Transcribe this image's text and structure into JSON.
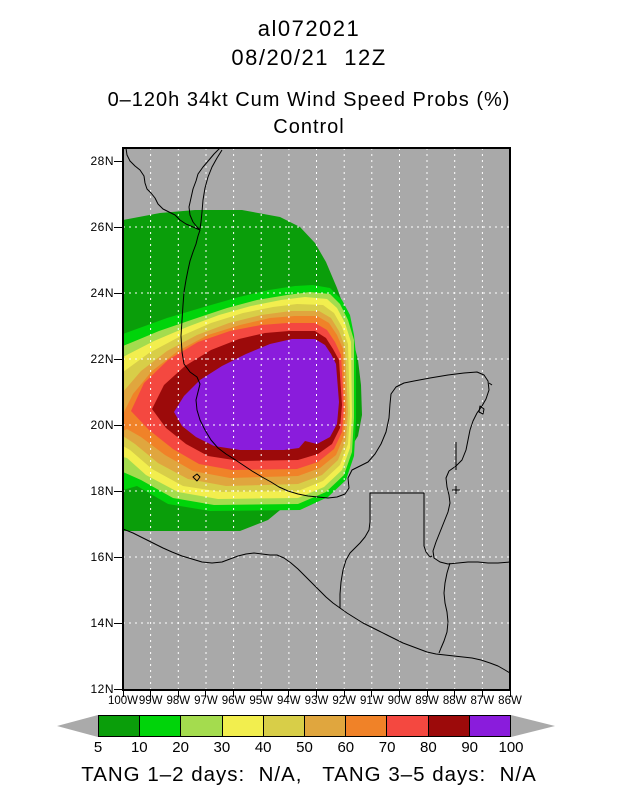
{
  "header": {
    "storm_id": "al072021",
    "init_time": "08/20/21  12Z",
    "product_title": "0–120h 34kt Cum Wind Speed Probs (%)",
    "model": "Control"
  },
  "map": {
    "background_color": "#A9A9A9",
    "coastline_color": "#000000",
    "gridline_color": "#FFFFFF",
    "border_color": "#000000",
    "lat_labels": [
      "28N",
      "26N",
      "24N",
      "22N",
      "20N",
      "18N",
      "16N",
      "14N",
      "12N"
    ],
    "lon_labels": [
      "100W",
      "99W",
      "98W",
      "97W",
      "96W",
      "95W",
      "94W",
      "93W",
      "92W",
      "91W",
      "90W",
      "89W",
      "88W",
      "87W",
      "86W"
    ]
  },
  "colorbar": {
    "labels": [
      "5",
      "10",
      "20",
      "30",
      "40",
      "50",
      "60",
      "70",
      "80",
      "90",
      "100"
    ],
    "levels": [
      {
        "range_pct": "5-10",
        "color": "#0A9E0A"
      },
      {
        "range_pct": "10-20",
        "color": "#00D40A"
      },
      {
        "range_pct": "20-30",
        "color": "#A4DC4E"
      },
      {
        "range_pct": "30-40",
        "color": "#F2EE4E"
      },
      {
        "range_pct": "40-50",
        "color": "#D8CE48"
      },
      {
        "range_pct": "50-60",
        "color": "#E0A63E"
      },
      {
        "range_pct": "60-70",
        "color": "#F08228"
      },
      {
        "range_pct": "70-80",
        "color": "#F44840"
      },
      {
        "range_pct": "80-90",
        "color": "#9C0A0A"
      },
      {
        "range_pct": "90-100",
        "color": "#8A1CDC"
      }
    ],
    "arrow_color": "#AAAAAA"
  },
  "footer": {
    "text": "TANG 1–2 days:  N/A,   TANG 3–5 days:  N/A"
  },
  "chart_data": {
    "type": "heatmap",
    "title": "0–120h 34kt Cum Wind Speed Probs (%)",
    "subtitle": "Control",
    "storm_id": "al072021",
    "init_time": "08/20/21 12Z",
    "x_axis": {
      "label": "longitude",
      "ticks_deg_west": [
        100,
        99,
        98,
        97,
        96,
        95,
        94,
        93,
        92,
        91,
        90,
        89,
        88,
        87,
        86
      ]
    },
    "y_axis": {
      "label": "latitude",
      "ticks_deg_north": [
        28,
        26,
        24,
        22,
        20,
        18,
        16,
        14,
        12
      ]
    },
    "grid": "dashed white, 1 deg lon x 2 deg lat",
    "legend_position": "bottom horizontal colorbar with out-of-range arrows",
    "probability_levels_pct": [
      5,
      10,
      20,
      30,
      40,
      50,
      60,
      70,
      80,
      90,
      100
    ],
    "contour_bands": [
      {
        "level_pct": "90-100",
        "color": "#8A1CDC",
        "approx_extent": "97.8W-92.5W, 19.4N-22.6N (purple core, Bay of Campeche)"
      },
      {
        "level_pct": "80-90",
        "color": "#9C0A0A",
        "approx_extent": "ring around core, thickest on south/west"
      },
      {
        "level_pct": "70-80",
        "color": "#F44840",
        "approx_extent": "ring around core"
      },
      {
        "level_pct": "60-70",
        "color": "#F08228",
        "approx_extent": "ring, west tail reaches 100W near 20.5N"
      },
      {
        "level_pct": "50-60",
        "color": "#E0A63E",
        "approx_extent": "ring, elongated west"
      },
      {
        "level_pct": "40-50",
        "color": "#D8CE48",
        "approx_extent": "ring, elongated west"
      },
      {
        "level_pct": "30-40",
        "color": "#F2EE4E",
        "approx_extent": "ring, elongated west"
      },
      {
        "level_pct": "20-30",
        "color": "#A4DC4E",
        "approx_extent": "ring, elongated west"
      },
      {
        "level_pct": "10-20",
        "color": "#00D40A",
        "approx_extent": "ring 100W-92W, 17.5N-23N"
      },
      {
        "level_pct": "5-10",
        "color": "#0A9E0A",
        "approx_extent": "outer blob 100W-91.2W, 16.8N-26.6N"
      }
    ],
    "max_region_center": "≈94.5W 21N",
    "tang_1_2_days": "N/A",
    "tang_3_5_days": "N/A"
  }
}
